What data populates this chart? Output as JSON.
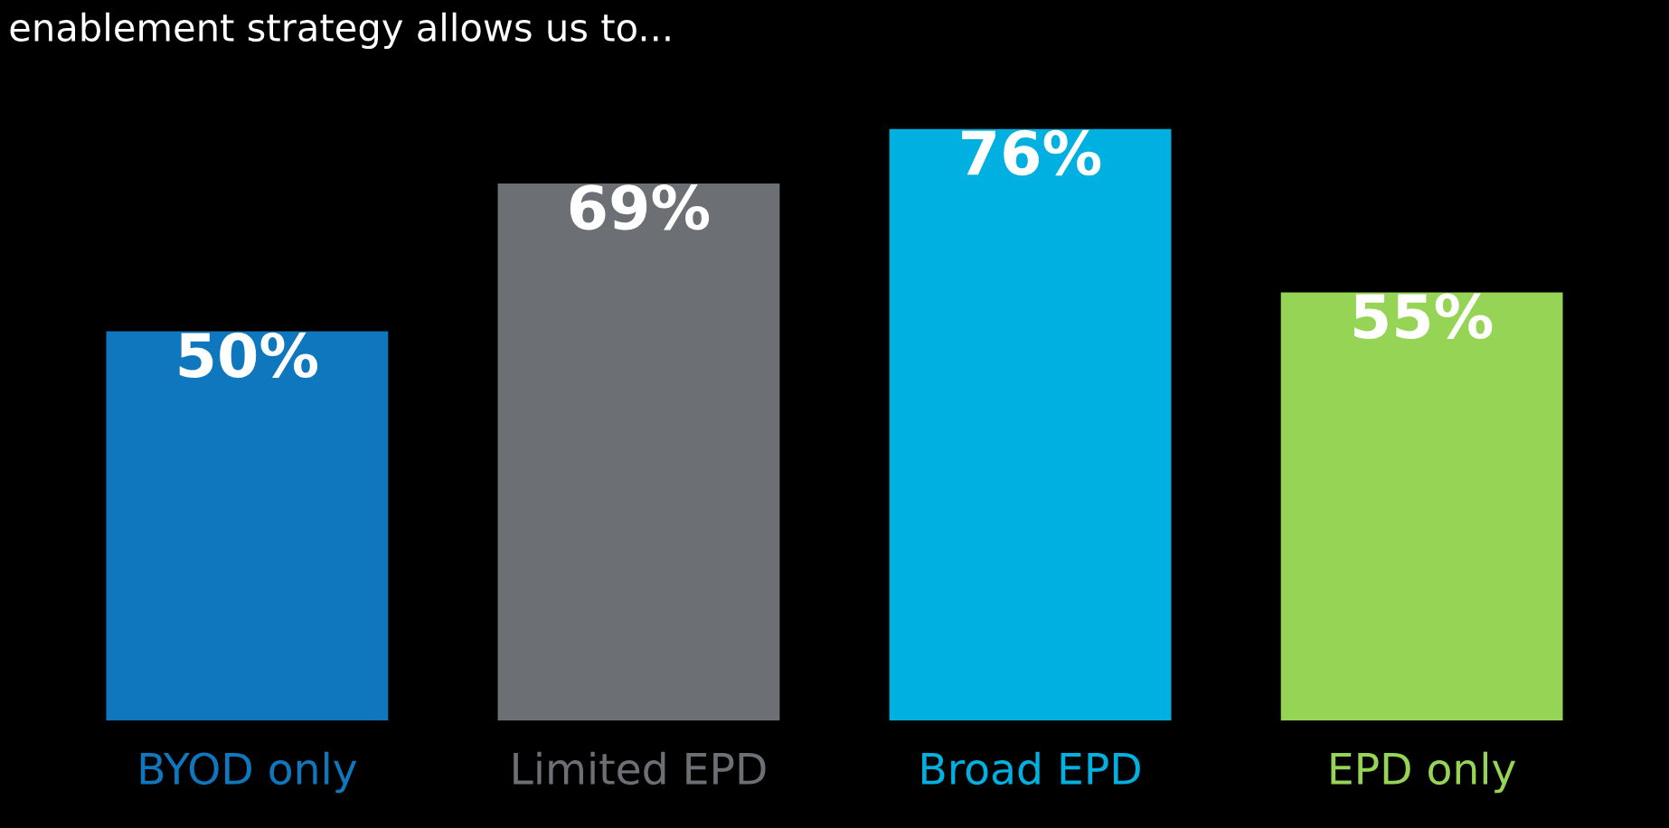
{
  "chart_data": {
    "type": "bar",
    "title": "enablement strategy allows us to...",
    "categories": [
      "BYOD only",
      "Limited EPD",
      "Broad EPD",
      "EPD only"
    ],
    "values": [
      50,
      69,
      76,
      55
    ],
    "value_labels": [
      "50%",
      "69%",
      "76%",
      "55%"
    ],
    "colors": [
      "#0e77bd",
      "#6c7074",
      "#00b0e0",
      "#95d454"
    ]
  }
}
